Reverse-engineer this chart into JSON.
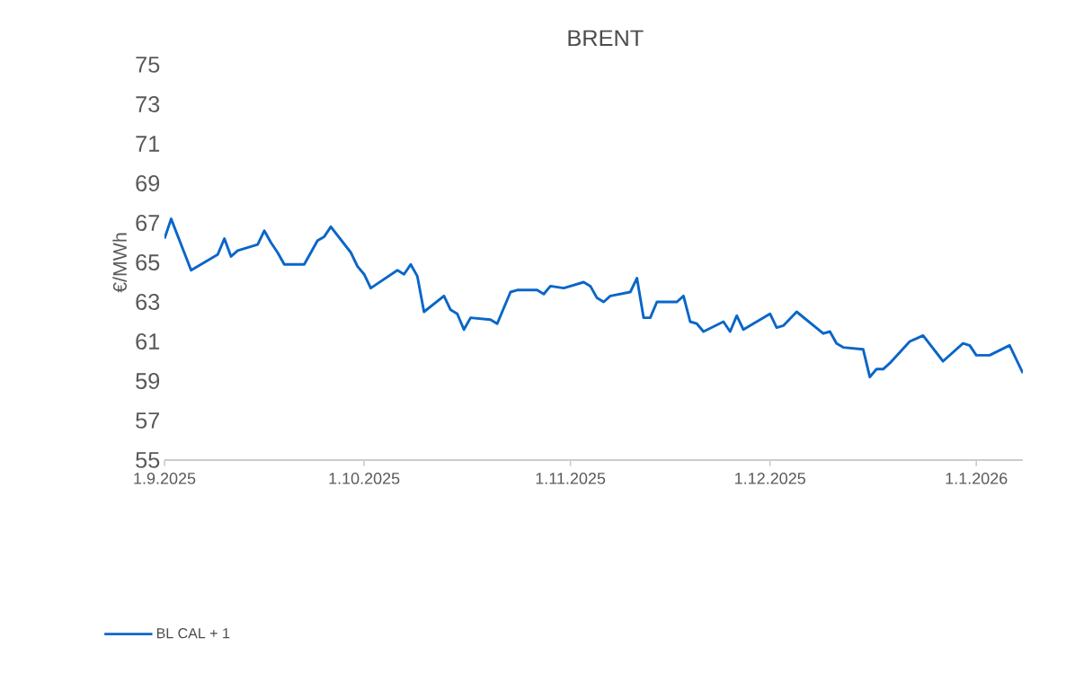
{
  "chart_data": {
    "type": "line",
    "title": "BRENT",
    "ylabel": "€/MWh",
    "x": [
      "2025-09-01",
      "2025-09-02",
      "2025-09-05",
      "2025-09-09",
      "2025-09-10",
      "2025-09-11",
      "2025-09-12",
      "2025-09-15",
      "2025-09-16",
      "2025-09-17",
      "2025-09-18",
      "2025-09-19",
      "2025-09-22",
      "2025-09-24",
      "2025-09-25",
      "2025-09-26",
      "2025-09-29",
      "2025-09-30",
      "2025-10-01",
      "2025-10-02",
      "2025-10-06",
      "2025-10-07",
      "2025-10-08",
      "2025-10-09",
      "2025-10-10",
      "2025-10-13",
      "2025-10-14",
      "2025-10-15",
      "2025-10-16",
      "2025-10-17",
      "2025-10-20",
      "2025-10-21",
      "2025-10-23",
      "2025-10-24",
      "2025-10-27",
      "2025-10-28",
      "2025-10-29",
      "2025-10-31",
      "2025-11-03",
      "2025-11-04",
      "2025-11-05",
      "2025-11-06",
      "2025-11-07",
      "2025-11-10",
      "2025-11-11",
      "2025-11-12",
      "2025-11-13",
      "2025-11-14",
      "2025-11-17",
      "2025-11-18",
      "2025-11-19",
      "2025-11-20",
      "2025-11-21",
      "2025-11-24",
      "2025-11-25",
      "2025-11-26",
      "2025-11-27",
      "2025-12-01",
      "2025-12-02",
      "2025-12-03",
      "2025-12-05",
      "2025-12-09",
      "2025-12-10",
      "2025-12-11",
      "2025-12-12",
      "2025-12-15",
      "2025-12-16",
      "2025-12-17",
      "2025-12-18",
      "2025-12-19",
      "2025-12-22",
      "2025-12-24",
      "2025-12-27",
      "2025-12-30",
      "2025-12-31",
      "2026-01-01",
      "2026-01-03",
      "2026-01-06",
      "2026-01-08"
    ],
    "series": [
      {
        "name": "BL CAL + 1",
        "color": "#0a66c8",
        "values": [
          66.2,
          67.2,
          64.6,
          65.4,
          66.2,
          65.3,
          65.6,
          65.9,
          66.6,
          66.0,
          65.5,
          64.9,
          64.9,
          66.1,
          66.3,
          66.8,
          65.5,
          64.8,
          64.4,
          63.7,
          64.6,
          64.4,
          64.9,
          64.3,
          62.5,
          63.3,
          62.6,
          62.4,
          61.6,
          62.2,
          62.1,
          61.9,
          63.5,
          63.6,
          63.6,
          63.4,
          63.8,
          63.7,
          64.0,
          63.8,
          63.2,
          63.0,
          63.3,
          63.5,
          64.2,
          62.2,
          62.2,
          63.0,
          63.0,
          63.3,
          62.0,
          61.9,
          61.5,
          62.0,
          61.5,
          62.3,
          61.6,
          62.4,
          61.7,
          61.8,
          62.5,
          61.4,
          61.5,
          60.9,
          60.7,
          60.6,
          59.2,
          59.6,
          59.6,
          59.9,
          61.0,
          61.3,
          60.0,
          60.9,
          60.8,
          60.3,
          60.3,
          60.8,
          59.4
        ]
      }
    ],
    "xlim": [
      "2025-09-01",
      "2026-01-08"
    ],
    "xticks": [
      {
        "value": "2025-09-01",
        "label": "1.9.2025"
      },
      {
        "value": "2025-10-01",
        "label": "1.10.2025"
      },
      {
        "value": "2025-11-01",
        "label": "1.11.2025"
      },
      {
        "value": "2025-12-01",
        "label": "1.12.2025"
      },
      {
        "value": "2026-01-01",
        "label": "1.1.2026"
      }
    ],
    "ylim": [
      55,
      75
    ],
    "yticks": [
      55,
      57,
      59,
      61,
      63,
      65,
      67,
      69,
      71,
      73,
      75
    ],
    "grid": false,
    "legend": "bottom left",
    "marker": "none",
    "line_style": "solid"
  }
}
